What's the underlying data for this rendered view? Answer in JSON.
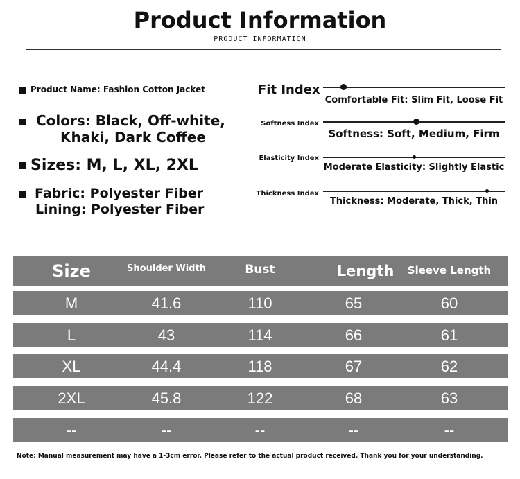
{
  "header": {
    "title": "Product Information",
    "subtitle": "PRODUCT INFORMATION"
  },
  "details": {
    "name": "Product Name: Fashion Cotton Jacket",
    "colors_1": "Colors: Black, Off-white,",
    "colors_2": "Khaki, Dark Coffee",
    "sizes": "Sizes: M, L, XL, 2XL",
    "fabric": "Fabric: Polyester Fiber",
    "lining": "Lining: Polyester Fiber"
  },
  "indices": [
    {
      "label": "Fit Index",
      "desc": "Comfortable Fit: Slim Fit, Loose Fit",
      "level": 0.11
    },
    {
      "label": "Softness Index",
      "desc": "Softness: Soft, Medium, Firm",
      "level": 0.51
    },
    {
      "label": "Elasticity Index",
      "desc": "Moderate Elasticity: Slightly Elastic",
      "level": 0.5
    },
    {
      "label": "Thickness Index",
      "desc": "Thickness: Moderate, Thick, Thin",
      "level": 0.9
    }
  ],
  "table": {
    "headers": [
      "Size",
      "Shoulder Width",
      "Bust",
      "Length",
      "Sleeve Length"
    ],
    "rows": [
      [
        "M",
        "41.6",
        "110",
        "65",
        "60"
      ],
      [
        "L",
        "43",
        "114",
        "66",
        "61"
      ],
      [
        "XL",
        "44.4",
        "118",
        "67",
        "62"
      ],
      [
        "2XL",
        "45.8",
        "122",
        "68",
        "63"
      ],
      [
        "--",
        "--",
        "--",
        "--",
        "--"
      ]
    ]
  },
  "note": "Note: Manual measurement may have a 1-3cm error. Please refer to the actual product received. Thank you for your understanding.",
  "colors": {
    "table_bg": "#7b7b7b"
  }
}
